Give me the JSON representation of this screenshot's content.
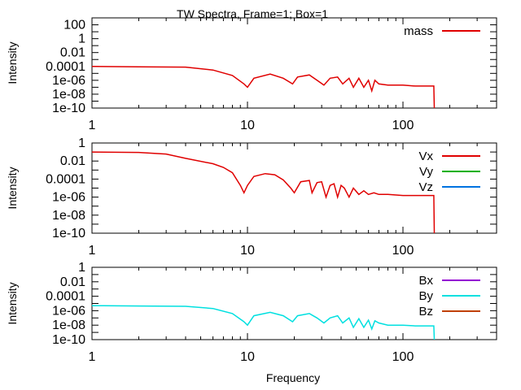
{
  "title": "TW Spectra, Frame=1; Box=1",
  "xlabel": "Frequency",
  "ylabel": "Intensity",
  "chart_data": [
    {
      "type": "line",
      "xscale": "log",
      "yscale": "log",
      "xlim": [
        1,
        400
      ],
      "ylim": [
        1e-10,
        1000
      ],
      "x_ticks": [
        "1",
        "10",
        "100"
      ],
      "y_ticks": [
        "100",
        "1",
        "0.01",
        "0.0001",
        "1e-06",
        "1e-08",
        "1e-10"
      ],
      "legend_position": "top-right",
      "series": [
        {
          "name": "mass",
          "color": "#e00000",
          "x": [
            1,
            2,
            4,
            6,
            8,
            9.5,
            10,
            11,
            14,
            17,
            19.5,
            21,
            25,
            28,
            31,
            34,
            38,
            41,
            45,
            48,
            52,
            56,
            60,
            63,
            66,
            70,
            80,
            100,
            120,
            150,
            158,
            159
          ],
          "y": [
            0.0001,
            9e-05,
            8e-05,
            3e-05,
            5e-06,
            3e-07,
            1e-07,
            2e-06,
            8e-06,
            2e-06,
            3e-07,
            3e-06,
            6e-06,
            1e-06,
            2e-07,
            2e-06,
            3e-06,
            3e-07,
            2e-06,
            1e-07,
            2e-06,
            1e-07,
            1e-06,
            3e-08,
            1e-06,
            3e-07,
            2e-07,
            2e-07,
            1.5e-07,
            1.5e-07,
            1.5e-07,
            1e-10
          ]
        }
      ]
    },
    {
      "type": "line",
      "xscale": "log",
      "yscale": "log",
      "xlim": [
        1,
        400
      ],
      "ylim": [
        1e-10,
        1
      ],
      "x_ticks": [
        "1",
        "10",
        "100"
      ],
      "y_ticks": [
        "1",
        "0.01",
        "0.0001",
        "1e-06",
        "1e-08",
        "1e-10"
      ],
      "legend_position": "top-right",
      "series": [
        {
          "name": "Vx",
          "color": "#e00000",
          "x": [
            1,
            2,
            3,
            4,
            6,
            7,
            8,
            9,
            9.5,
            10,
            11,
            13,
            15,
            17,
            19,
            20,
            22,
            25,
            26,
            28,
            30,
            32,
            34,
            36,
            38,
            40,
            42,
            45,
            48,
            52,
            56,
            60,
            65,
            70,
            80,
            100,
            120,
            150,
            158,
            159
          ],
          "y": [
            0.1,
            0.09,
            0.06,
            0.02,
            0.005,
            0.002,
            0.0005,
            2e-05,
            3e-06,
            2e-05,
            0.0002,
            0.0004,
            0.0003,
            8e-05,
            1e-05,
            3e-06,
            5e-05,
            7e-05,
            3e-06,
            4e-05,
            5e-05,
            1e-06,
            2e-05,
            3e-05,
            1e-06,
            2e-05,
            1e-05,
            1e-06,
            1e-05,
            2e-06,
            5e-06,
            2e-06,
            3e-06,
            2e-06,
            2e-06,
            1.5e-06,
            1.5e-06,
            1.5e-06,
            1.5e-06,
            1e-10
          ]
        },
        {
          "name": "Vy",
          "color": "#00b000",
          "x": [],
          "y": []
        },
        {
          "name": "Vz",
          "color": "#0072e0",
          "x": [],
          "y": []
        }
      ]
    },
    {
      "type": "line",
      "xscale": "log",
      "yscale": "log",
      "xlim": [
        1,
        400
      ],
      "ylim": [
        1e-10,
        1
      ],
      "x_ticks": [
        "1",
        "10",
        "100"
      ],
      "y_ticks": [
        "1",
        "0.01",
        "0.0001",
        "1e-06",
        "1e-08",
        "1e-10"
      ],
      "legend_position": "top-right",
      "series": [
        {
          "name": "Bx",
          "color": "#9400d3",
          "x": [],
          "y": []
        },
        {
          "name": "By",
          "color": "#00e0e0",
          "x": [
            1,
            2,
            4,
            6,
            8,
            9.5,
            10,
            11,
            14,
            17,
            19.5,
            21,
            25,
            28,
            31,
            34,
            38,
            41,
            45,
            48,
            52,
            56,
            60,
            63,
            66,
            70,
            80,
            100,
            120,
            150,
            158,
            159
          ],
          "y": [
            5e-06,
            4.5e-06,
            4e-06,
            2e-06,
            4e-07,
            3e-08,
            1e-08,
            2e-07,
            6e-07,
            2e-07,
            3e-08,
            2e-07,
            4e-07,
            1e-07,
            2e-08,
            1e-07,
            2e-07,
            2e-08,
            1e-07,
            5e-09,
            8e-08,
            5e-09,
            5e-08,
            3e-09,
            4e-08,
            2e-08,
            1e-08,
            1e-08,
            8e-09,
            8e-09,
            8e-09,
            1e-10
          ]
        },
        {
          "name": "Bz",
          "color": "#c04000",
          "x": [],
          "y": []
        }
      ]
    }
  ]
}
